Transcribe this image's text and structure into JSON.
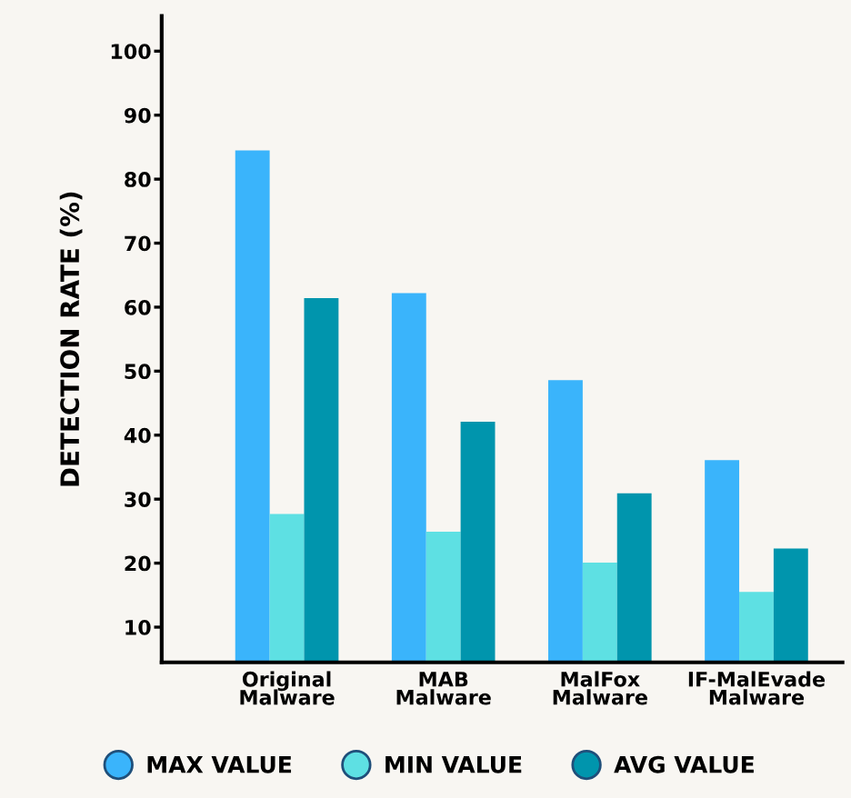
{
  "chart_data": {
    "type": "bar",
    "ylabel": "DETECTION RATE (%)",
    "categories": [
      "Original\nMalware",
      "MAB\nMalware",
      "MalFox\nMalware",
      "IF-MalEvade\nMalware"
    ],
    "series": [
      {
        "name": "MAX VALUE",
        "color": "#3ab4fb",
        "values": [
          84.5,
          62.2,
          48.6,
          36.1
        ]
      },
      {
        "name": "MIN VALUE",
        "color": "#5ee0e3",
        "values": [
          27.7,
          24.9,
          20.1,
          15.5
        ]
      },
      {
        "name": "AVG VALUE",
        "color": "#0095ad",
        "values": [
          61.4,
          42.1,
          30.9,
          22.3
        ]
      }
    ],
    "ylim": [
      4.5,
      105.5
    ],
    "yticks": [
      10,
      20,
      30,
      40,
      50,
      60,
      70,
      80,
      90,
      100
    ],
    "grid": false,
    "legend": "bottom"
  }
}
